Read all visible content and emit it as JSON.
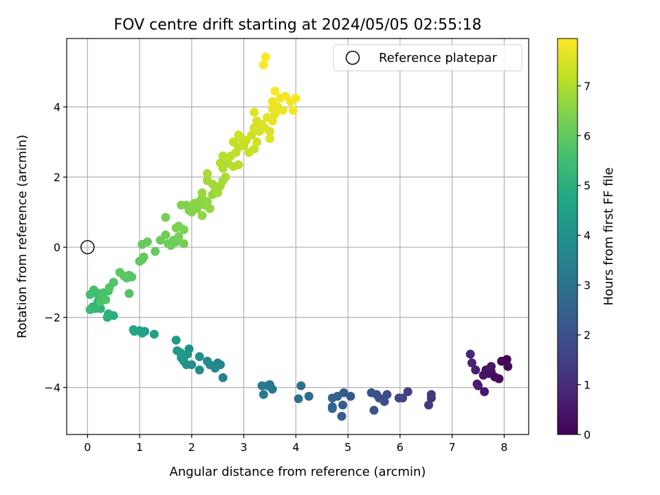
{
  "chart_data": {
    "type": "scatter",
    "title": "FOV centre drift starting at 2024/05/05 02:55:18",
    "xlabel": "Angular distance from reference (arcmin)",
    "ylabel": "Rotation from reference (arcmin)",
    "xlim": [
      -0.4,
      8.47
    ],
    "ylim": [
      -5.34,
      5.95
    ],
    "x_ticks": [
      0,
      1,
      2,
      3,
      4,
      5,
      6,
      7,
      8
    ],
    "y_ticks": [
      -4,
      -2,
      0,
      2,
      4
    ],
    "grid": true,
    "legend": {
      "placement": "top-right",
      "entries": [
        "Reference platepar"
      ]
    },
    "reference_point": {
      "x": 0,
      "y": 0
    },
    "colorbar": {
      "label": "Hours from first FF file",
      "range": [
        0,
        7.95
      ],
      "ticks": [
        0,
        1,
        2,
        3,
        4,
        5,
        6,
        7
      ],
      "colormap": "viridis"
    },
    "points": [
      {
        "x": 8.05,
        "y": -3.2,
        "t": 0.05
      },
      {
        "x": 7.95,
        "y": -3.25,
        "t": 0.1
      },
      {
        "x": 8.07,
        "y": -3.4,
        "t": 0.15
      },
      {
        "x": 7.9,
        "y": -3.75,
        "t": 0.2
      },
      {
        "x": 7.82,
        "y": -3.7,
        "t": 0.25
      },
      {
        "x": 7.75,
        "y": -3.55,
        "t": 0.3
      },
      {
        "x": 7.7,
        "y": -3.6,
        "t": 0.35
      },
      {
        "x": 7.65,
        "y": -3.5,
        "t": 0.4
      },
      {
        "x": 7.6,
        "y": -3.65,
        "t": 0.45
      },
      {
        "x": 7.75,
        "y": -3.4,
        "t": 0.5
      },
      {
        "x": 7.62,
        "y": -4.12,
        "t": 0.55
      },
      {
        "x": 7.5,
        "y": -3.95,
        "t": 0.6
      },
      {
        "x": 7.48,
        "y": -3.9,
        "t": 0.65
      },
      {
        "x": 7.45,
        "y": -3.5,
        "t": 0.7
      },
      {
        "x": 7.38,
        "y": -3.3,
        "t": 0.8
      },
      {
        "x": 7.35,
        "y": -3.05,
        "t": 0.9
      },
      {
        "x": 6.6,
        "y": -4.3,
        "t": 1.2
      },
      {
        "x": 6.6,
        "y": -4.2,
        "t": 1.3
      },
      {
        "x": 6.55,
        "y": -4.5,
        "t": 1.35
      },
      {
        "x": 6.15,
        "y": -4.12,
        "t": 1.5
      },
      {
        "x": 6.05,
        "y": -4.3,
        "t": 1.6
      },
      {
        "x": 5.98,
        "y": -4.3,
        "t": 1.65
      },
      {
        "x": 5.75,
        "y": -4.2,
        "t": 1.8
      },
      {
        "x": 5.7,
        "y": -4.4,
        "t": 1.85
      },
      {
        "x": 5.6,
        "y": -4.3,
        "t": 1.9
      },
      {
        "x": 5.55,
        "y": -4.2,
        "t": 1.95
      },
      {
        "x": 5.45,
        "y": -4.15,
        "t": 2.0
      },
      {
        "x": 5.5,
        "y": -4.65,
        "t": 2.05
      },
      {
        "x": 5.05,
        "y": -4.25,
        "t": 2.2
      },
      {
        "x": 4.92,
        "y": -4.15,
        "t": 2.3
      },
      {
        "x": 4.9,
        "y": -4.5,
        "t": 2.35
      },
      {
        "x": 4.88,
        "y": -4.82,
        "t": 2.4
      },
      {
        "x": 4.8,
        "y": -4.25,
        "t": 2.45
      },
      {
        "x": 4.7,
        "y": -4.3,
        "t": 2.5
      },
      {
        "x": 4.7,
        "y": -4.55,
        "t": 2.55
      },
      {
        "x": 4.7,
        "y": -4.6,
        "t": 2.6
      },
      {
        "x": 4.25,
        "y": -4.25,
        "t": 2.8
      },
      {
        "x": 4.1,
        "y": -3.95,
        "t": 2.9
      },
      {
        "x": 4.05,
        "y": -4.32,
        "t": 2.95
      },
      {
        "x": 3.55,
        "y": -4.05,
        "t": 3.1
      },
      {
        "x": 3.5,
        "y": -3.92,
        "t": 3.15
      },
      {
        "x": 3.45,
        "y": -3.95,
        "t": 3.2
      },
      {
        "x": 3.38,
        "y": -4.2,
        "t": 3.25
      },
      {
        "x": 3.35,
        "y": -3.95,
        "t": 3.3
      },
      {
        "x": 2.6,
        "y": -3.72,
        "t": 3.5
      },
      {
        "x": 2.55,
        "y": -3.35,
        "t": 3.55
      },
      {
        "x": 2.5,
        "y": -3.3,
        "t": 3.6
      },
      {
        "x": 2.45,
        "y": -3.45,
        "t": 3.65
      },
      {
        "x": 2.35,
        "y": -3.35,
        "t": 3.7
      },
      {
        "x": 2.3,
        "y": -3.25,
        "t": 3.75
      },
      {
        "x": 2.15,
        "y": -3.5,
        "t": 3.8
      },
      {
        "x": 2.15,
        "y": -3.12,
        "t": 3.85
      },
      {
        "x": 2.0,
        "y": -3.35,
        "t": 3.9
      },
      {
        "x": 1.95,
        "y": -2.9,
        "t": 3.95
      },
      {
        "x": 1.9,
        "y": -3.35,
        "t": 4.0
      },
      {
        "x": 1.92,
        "y": -3.05,
        "t": 4.05
      },
      {
        "x": 1.85,
        "y": -3.25,
        "t": 4.1
      },
      {
        "x": 1.8,
        "y": -3.15,
        "t": 4.15
      },
      {
        "x": 1.78,
        "y": -3.0,
        "t": 4.2
      },
      {
        "x": 1.72,
        "y": -2.95,
        "t": 4.25
      },
      {
        "x": 1.7,
        "y": -2.65,
        "t": 4.3
      },
      {
        "x": 1.28,
        "y": -2.48,
        "t": 4.45
      },
      {
        "x": 1.1,
        "y": -2.4,
        "t": 4.5
      },
      {
        "x": 1.05,
        "y": -2.45,
        "t": 4.55
      },
      {
        "x": 1.0,
        "y": -2.38,
        "t": 4.6
      },
      {
        "x": 0.9,
        "y": -2.4,
        "t": 4.65
      },
      {
        "x": 0.88,
        "y": -2.35,
        "t": 4.7
      },
      {
        "x": 0.5,
        "y": -1.95,
        "t": 5.0
      },
      {
        "x": 0.4,
        "y": -1.9,
        "t": 5.05
      },
      {
        "x": 0.38,
        "y": -2.0,
        "t": 5.1
      },
      {
        "x": 0.25,
        "y": -1.75,
        "t": 5.15
      },
      {
        "x": 0.2,
        "y": -1.55,
        "t": 5.2
      },
      {
        "x": 0.15,
        "y": -1.75,
        "t": 5.25
      },
      {
        "x": 0.1,
        "y": -1.7,
        "t": 5.3
      },
      {
        "x": 0.05,
        "y": -1.78,
        "t": 5.35
      },
      {
        "x": 0.3,
        "y": -1.5,
        "t": 5.4
      },
      {
        "x": 0.22,
        "y": -1.4,
        "t": 5.45
      },
      {
        "x": 0.18,
        "y": -1.3,
        "t": 5.5
      },
      {
        "x": 0.12,
        "y": -1.22,
        "t": 5.52
      },
      {
        "x": 0.05,
        "y": -1.35,
        "t": 5.55
      },
      {
        "x": 0.3,
        "y": -1.3,
        "t": 5.6
      },
      {
        "x": 0.4,
        "y": -1.25,
        "t": 5.65
      },
      {
        "x": 0.35,
        "y": -1.5,
        "t": 5.7
      },
      {
        "x": 0.25,
        "y": -1.55,
        "t": 5.72
      },
      {
        "x": 0.5,
        "y": -1.0,
        "t": 5.75
      },
      {
        "x": 0.42,
        "y": -1.15,
        "t": 5.78
      },
      {
        "x": 0.8,
        "y": -1.32,
        "t": 5.8
      },
      {
        "x": 0.85,
        "y": -0.85,
        "t": 5.82
      },
      {
        "x": 0.75,
        "y": -0.88,
        "t": 5.85
      },
      {
        "x": 0.8,
        "y": -0.8,
        "t": 5.87
      },
      {
        "x": 0.7,
        "y": -0.82,
        "t": 5.9
      },
      {
        "x": 0.62,
        "y": -0.72,
        "t": 5.92
      },
      {
        "x": 1.0,
        "y": -0.4,
        "t": 5.95
      },
      {
        "x": 1.05,
        "y": -0.35,
        "t": 5.97
      },
      {
        "x": 1.08,
        "y": -0.28,
        "t": 6.0
      },
      {
        "x": 1.3,
        "y": -0.12,
        "t": 6.02
      },
      {
        "x": 1.05,
        "y": 0.08,
        "t": 6.05
      },
      {
        "x": 1.15,
        "y": 0.15,
        "t": 6.07
      },
      {
        "x": 1.4,
        "y": 0.2,
        "t": 6.1
      },
      {
        "x": 1.55,
        "y": 0.1,
        "t": 6.12
      },
      {
        "x": 1.6,
        "y": 0.05,
        "t": 6.15
      },
      {
        "x": 1.65,
        "y": 0.2,
        "t": 6.17
      },
      {
        "x": 1.7,
        "y": 0.15,
        "t": 6.2
      },
      {
        "x": 1.5,
        "y": 0.35,
        "t": 6.22
      },
      {
        "x": 1.75,
        "y": 0.3,
        "t": 6.25
      },
      {
        "x": 1.85,
        "y": 0.1,
        "t": 6.27
      },
      {
        "x": 1.5,
        "y": 0.85,
        "t": 6.3
      },
      {
        "x": 1.7,
        "y": 0.55,
        "t": 6.32
      },
      {
        "x": 1.75,
        "y": 0.6,
        "t": 6.35
      },
      {
        "x": 1.85,
        "y": 0.5,
        "t": 6.37
      },
      {
        "x": 1.8,
        "y": 1.2,
        "t": 6.4
      },
      {
        "x": 1.9,
        "y": 1.2,
        "t": 6.42
      },
      {
        "x": 1.95,
        "y": 1.05,
        "t": 6.45
      },
      {
        "x": 2.0,
        "y": 1.0,
        "t": 6.47
      },
      {
        "x": 2.1,
        "y": 1.1,
        "t": 6.5
      },
      {
        "x": 2.05,
        "y": 1.25,
        "t": 6.52
      },
      {
        "x": 2.15,
        "y": 1.3,
        "t": 6.55
      },
      {
        "x": 2.2,
        "y": 1.4,
        "t": 6.57
      },
      {
        "x": 2.25,
        "y": 1.2,
        "t": 6.6
      },
      {
        "x": 2.2,
        "y": 0.9,
        "t": 6.62
      },
      {
        "x": 2.3,
        "y": 1.3,
        "t": 6.65
      },
      {
        "x": 2.35,
        "y": 1.1,
        "t": 6.67
      },
      {
        "x": 2.4,
        "y": 1.5,
        "t": 6.7
      },
      {
        "x": 2.2,
        "y": 1.55,
        "t": 6.72
      },
      {
        "x": 2.45,
        "y": 1.6,
        "t": 6.75
      },
      {
        "x": 2.5,
        "y": 1.7,
        "t": 6.77
      },
      {
        "x": 2.3,
        "y": 1.9,
        "t": 6.8
      },
      {
        "x": 2.4,
        "y": 1.8,
        "t": 6.82
      },
      {
        "x": 2.5,
        "y": 1.55,
        "t": 6.85
      },
      {
        "x": 2.55,
        "y": 1.75,
        "t": 6.87
      },
      {
        "x": 2.6,
        "y": 1.9,
        "t": 6.9
      },
      {
        "x": 2.3,
        "y": 2.1,
        "t": 6.92
      },
      {
        "x": 2.65,
        "y": 2.0,
        "t": 6.95
      },
      {
        "x": 2.6,
        "y": 2.25,
        "t": 6.97
      },
      {
        "x": 2.7,
        "y": 2.4,
        "t": 7.0
      },
      {
        "x": 2.55,
        "y": 2.4,
        "t": 7.02
      },
      {
        "x": 2.8,
        "y": 2.3,
        "t": 7.05
      },
      {
        "x": 2.9,
        "y": 2.35,
        "t": 7.07
      },
      {
        "x": 2.6,
        "y": 2.6,
        "t": 7.1
      },
      {
        "x": 2.75,
        "y": 2.6,
        "t": 7.12
      },
      {
        "x": 2.85,
        "y": 2.7,
        "t": 7.15
      },
      {
        "x": 2.9,
        "y": 2.85,
        "t": 7.17
      },
      {
        "x": 2.8,
        "y": 3.0,
        "t": 7.2
      },
      {
        "x": 3.0,
        "y": 2.9,
        "t": 7.22
      },
      {
        "x": 3.1,
        "y": 2.7,
        "t": 7.25
      },
      {
        "x": 3.2,
        "y": 2.8,
        "t": 7.27
      },
      {
        "x": 2.95,
        "y": 3.1,
        "t": 7.3
      },
      {
        "x": 3.05,
        "y": 3.05,
        "t": 7.32
      },
      {
        "x": 2.9,
        "y": 3.2,
        "t": 7.35
      },
      {
        "x": 3.15,
        "y": 3.2,
        "t": 7.37
      },
      {
        "x": 3.25,
        "y": 3.0,
        "t": 7.4
      },
      {
        "x": 3.3,
        "y": 3.3,
        "t": 7.42
      },
      {
        "x": 3.2,
        "y": 3.4,
        "t": 7.45
      },
      {
        "x": 3.35,
        "y": 3.5,
        "t": 7.47
      },
      {
        "x": 3.25,
        "y": 3.6,
        "t": 7.5
      },
      {
        "x": 3.4,
        "y": 3.4,
        "t": 7.52
      },
      {
        "x": 3.5,
        "y": 3.3,
        "t": 7.55
      },
      {
        "x": 3.5,
        "y": 3.1,
        "t": 7.57
      },
      {
        "x": 3.2,
        "y": 3.85,
        "t": 7.6
      },
      {
        "x": 3.45,
        "y": 3.7,
        "t": 7.62
      },
      {
        "x": 3.55,
        "y": 3.6,
        "t": 7.65
      },
      {
        "x": 3.6,
        "y": 3.8,
        "t": 7.67
      },
      {
        "x": 3.55,
        "y": 3.95,
        "t": 7.7
      },
      {
        "x": 3.65,
        "y": 4.0,
        "t": 7.72
      },
      {
        "x": 3.75,
        "y": 3.9,
        "t": 7.75
      },
      {
        "x": 3.55,
        "y": 4.15,
        "t": 7.77
      },
      {
        "x": 3.7,
        "y": 4.25,
        "t": 7.8
      },
      {
        "x": 3.8,
        "y": 4.3,
        "t": 7.82
      },
      {
        "x": 3.9,
        "y": 4.15,
        "t": 7.84
      },
      {
        "x": 3.95,
        "y": 3.9,
        "t": 7.86
      },
      {
        "x": 4.0,
        "y": 4.25,
        "t": 7.88
      },
      {
        "x": 3.6,
        "y": 4.45,
        "t": 7.9
      },
      {
        "x": 3.38,
        "y": 5.2,
        "t": 7.93
      },
      {
        "x": 3.42,
        "y": 5.42,
        "t": 7.95
      }
    ]
  }
}
